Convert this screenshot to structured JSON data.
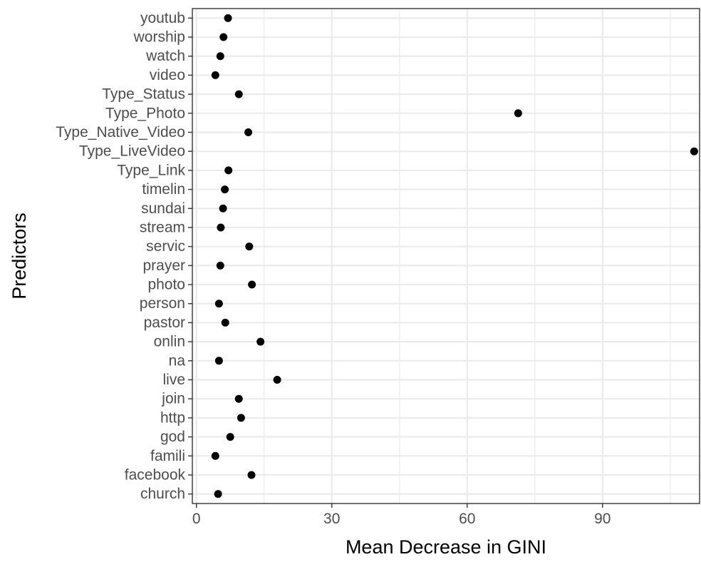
{
  "chart_data": {
    "type": "scatter",
    "title": "",
    "xlabel": "Mean Decrease in GINI",
    "ylabel": "Predictors",
    "xlim": [
      -0.9,
      111.5
    ],
    "x_ticks": [
      0,
      30,
      60,
      90
    ],
    "x_minor_ticks": [
      15,
      45,
      75,
      105
    ],
    "grid": true,
    "legend": "none",
    "point_color": "#000000",
    "grid_color": "#ebebeb",
    "categories": [
      "youtub",
      "worship",
      "watch",
      "video",
      "Type_Status",
      "Type_Photo",
      "Type_Native_Video",
      "Type_LiveVideo",
      "Type_Link",
      "timelin",
      "sundai",
      "stream",
      "servic",
      "prayer",
      "photo",
      "person",
      "pastor",
      "onlin",
      "na",
      "live",
      "join",
      "http",
      "god",
      "famili",
      "facebook",
      "church"
    ],
    "values": [
      7.0,
      6.0,
      5.3,
      4.2,
      9.4,
      71.3,
      11.5,
      110.3,
      7.1,
      6.3,
      5.9,
      5.4,
      11.7,
      5.3,
      12.3,
      5.0,
      6.4,
      14.2,
      5.0,
      17.9,
      9.4,
      9.9,
      7.5,
      4.2,
      12.2,
      4.8
    ]
  }
}
